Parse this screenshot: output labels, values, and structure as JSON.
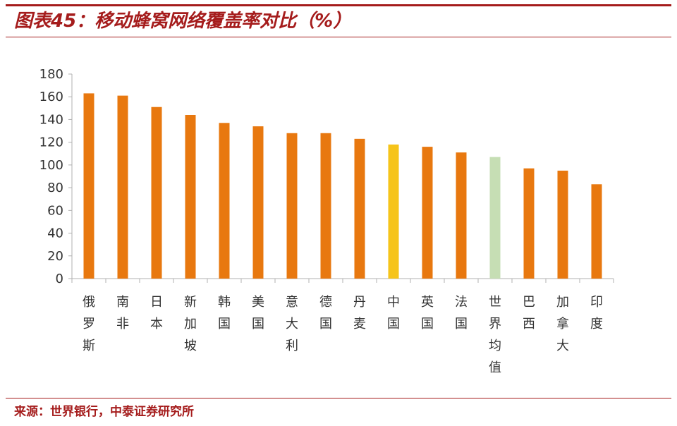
{
  "header": {
    "title": "图表45：移动蜂窝网络覆盖率对比（%）"
  },
  "footer": {
    "source": "来源：世界银行，中泰证券研究所"
  },
  "colors": {
    "accent": "#a51c1c",
    "default_bar": "#e8780f"
  },
  "chart_data": {
    "type": "bar",
    "title": "移动蜂窝网络覆盖率对比（%）",
    "xlabel": "",
    "ylabel": "",
    "ylim": [
      0,
      180
    ],
    "yticks": [
      0,
      20,
      40,
      60,
      80,
      100,
      120,
      140,
      160,
      180
    ],
    "grid": false,
    "legend": "none",
    "categories": [
      "俄罗斯",
      "南非",
      "日本",
      "新加坡",
      "韩国",
      "美国",
      "意大利",
      "德国",
      "丹麦",
      "中国",
      "英国",
      "法国",
      "世界均值",
      "巴西",
      "加拿大",
      "印度"
    ],
    "values": [
      163,
      161,
      151,
      144,
      137,
      134,
      128,
      128,
      123,
      118,
      116,
      111,
      107,
      97,
      95,
      83
    ],
    "bar_colors": [
      "#e8780f",
      "#e8780f",
      "#e8780f",
      "#e8780f",
      "#e8780f",
      "#e8780f",
      "#e8780f",
      "#e8780f",
      "#e8780f",
      "#f6c41a",
      "#e8780f",
      "#e8780f",
      "#c6deb4",
      "#e8780f",
      "#e8780f",
      "#e8780f"
    ]
  }
}
